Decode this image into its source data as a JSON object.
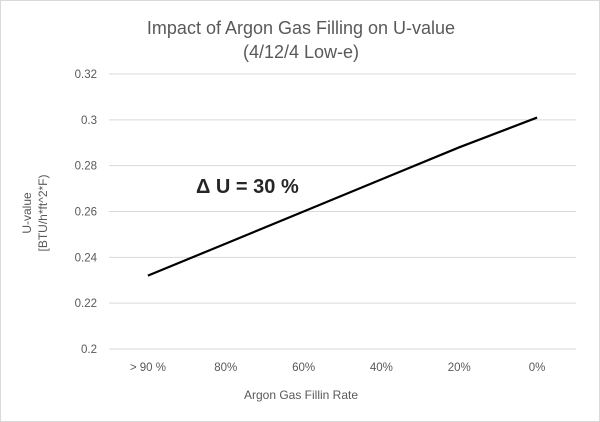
{
  "chart_data": {
    "type": "line",
    "title": "Impact of Argon Gas Filling on U-value",
    "subtitle": "(4/12/4 Low-e)",
    "xlabel": "Argon Gas Fillin Rate",
    "ylabel_lines": [
      "U-value",
      "[BTU/h*ft^2*F)"
    ],
    "categories": [
      "> 90 %",
      "80%",
      "60%",
      "40%",
      "20%",
      "0%"
    ],
    "series": [
      {
        "values": [
          0.232,
          0.246,
          0.26,
          0.274,
          0.288,
          0.301
        ]
      }
    ],
    "ylim": [
      0.2,
      0.32
    ],
    "yticks": [
      0.2,
      0.22,
      0.24,
      0.26,
      0.28,
      0.3,
      0.32
    ],
    "ytick_labels": [
      "0.2",
      "0.22",
      "0.24",
      "0.26",
      "0.28",
      "0.3",
      "0.32"
    ],
    "grid": true,
    "annotation": "Δ U = 30 %",
    "colors": {
      "series": "#000000",
      "grid": "#d9d9d9",
      "text": "#595959"
    }
  }
}
